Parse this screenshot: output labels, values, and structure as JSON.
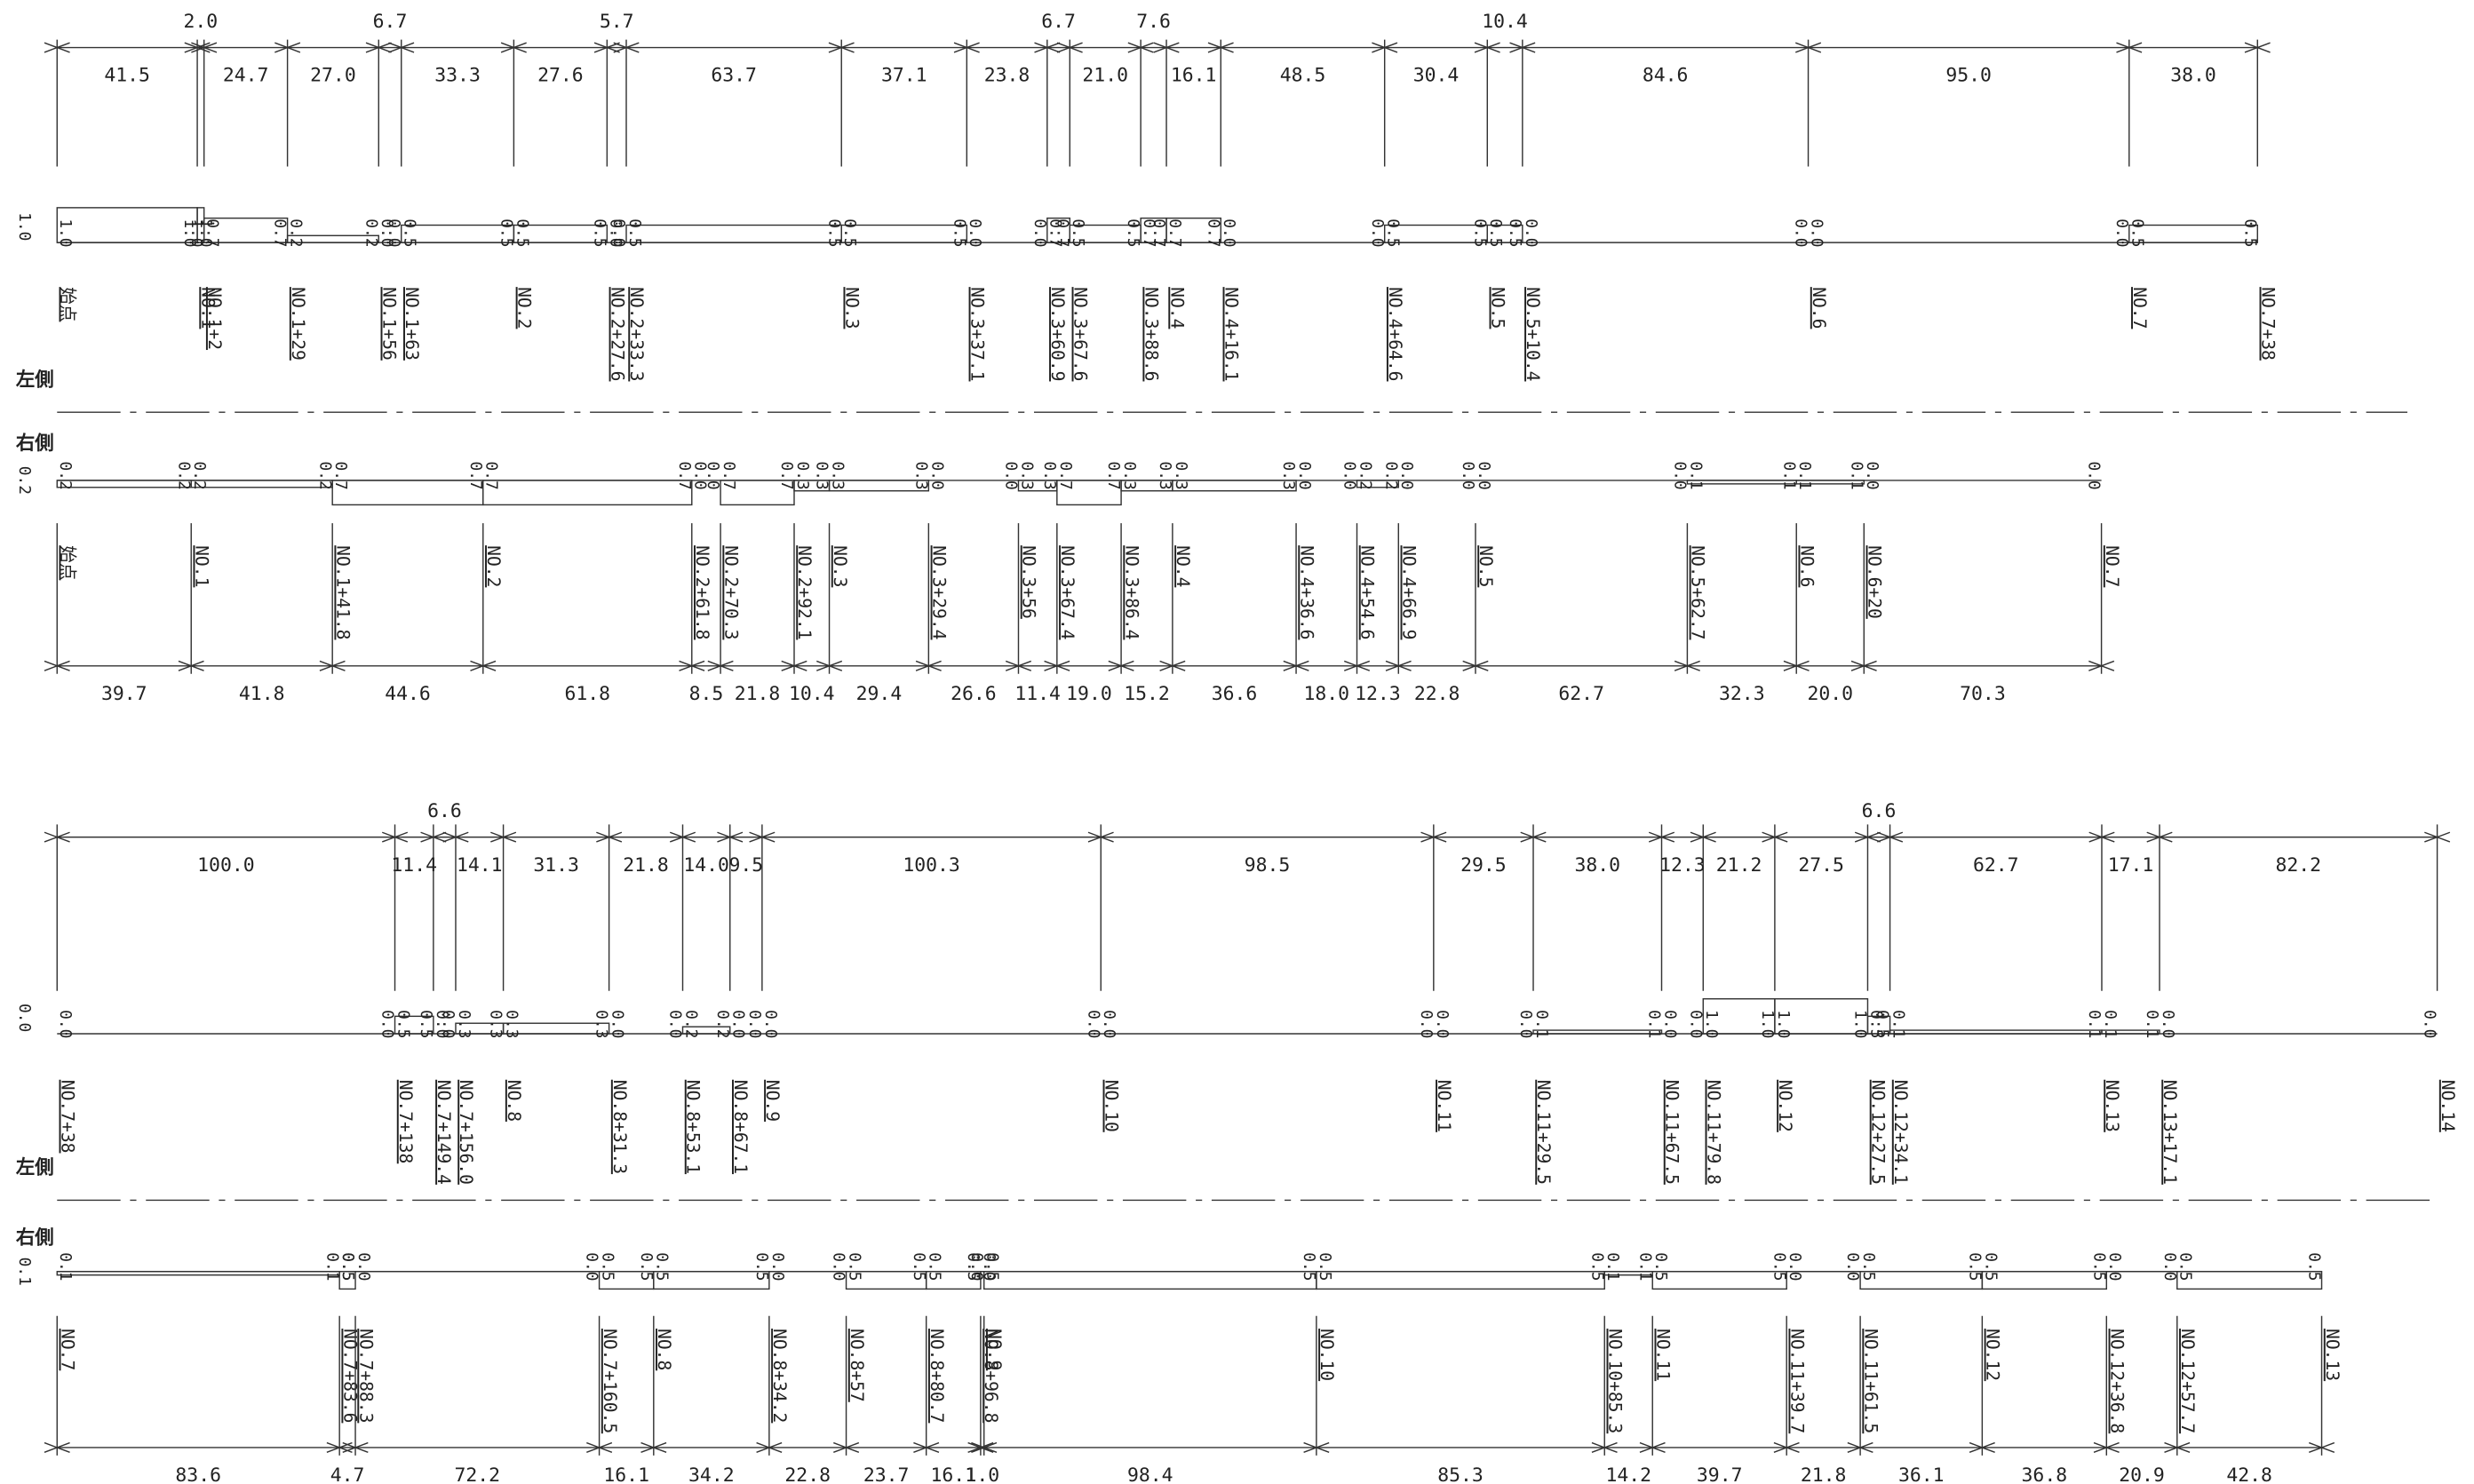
{
  "side_labels": {
    "left": "左側",
    "right": "右側"
  },
  "panels": [
    {
      "start_width": "1.0",
      "dims": [
        "41.5",
        "2.0",
        "24.7",
        "27.0",
        "6.7",
        "33.3",
        "27.6",
        "5.7",
        "63.7",
        "37.1",
        "23.8",
        "6.7",
        "21.0",
        "7.6",
        "16.1",
        "48.5",
        "30.4",
        "10.4",
        "84.6",
        "95.0",
        "38.0"
      ],
      "stations": [
        "始点",
        "NO.1",
        "NO.1+2",
        "NO.1+29",
        "NO.1+56",
        "NO.1+63",
        "NO.2",
        "NO.2+27.6",
        "NO.2+33.3",
        "NO.3",
        "NO.3+37.1",
        "NO.3+60.9",
        "NO.3+67.6",
        "NO.3+88.6",
        "NO.4",
        "NO.4+16.1",
        "NO.4+64.6",
        "NO.5",
        "NO.5+10.4",
        "NO.6",
        "NO.7",
        "NO.7+38"
      ],
      "widths": [
        "1.0",
        "1.0",
        "0.7",
        "0.2",
        "0.0",
        "0.5",
        "0.5",
        "0.0",
        "0.5",
        "0.5",
        "0.0",
        "0.7",
        "0.5",
        "0.7",
        "0.7",
        "0.0",
        "0.5",
        "0.5",
        "0.0",
        "0.0",
        "0.5"
      ]
    },
    {
      "start_width": "0.2",
      "dims": [
        "39.7",
        "41.8",
        "44.6",
        "61.8",
        "8.5",
        "21.8",
        "10.4",
        "29.4",
        "26.6",
        "11.4",
        "19.0",
        "15.2",
        "36.6",
        "18.0",
        "12.3",
        "22.8",
        "62.7",
        "32.3",
        "20.0",
        "70.3"
      ],
      "stations": [
        "始点",
        "NO.1",
        "NO.1+41.8",
        "NO.2",
        "NO.2+61.8",
        "NO.2+70.3",
        "NO.2+92.1",
        "NO.3",
        "NO.3+29.4",
        "NO.3+56",
        "NO.3+67.4",
        "NO.3+86.4",
        "NO.4",
        "NO.4+36.6",
        "NO.4+54.6",
        "NO.4+66.9",
        "NO.5",
        "NO.5+62.7",
        "NO.6",
        "NO.6+20",
        "NO.7"
      ],
      "widths": [
        "0.2",
        "0.2",
        "0.7",
        "0.7",
        "0.0",
        "0.7",
        "0.3",
        "0.3",
        "0.0",
        "0.3",
        "0.7",
        "0.3",
        "0.3",
        "0.0",
        "0.2",
        "0.0",
        "0.0",
        "0.1",
        "0.1",
        "0.0"
      ]
    },
    {
      "start_width": "0.0",
      "dims": [
        "100.0",
        "11.4",
        "6.6",
        "14.1",
        "31.3",
        "21.8",
        "14.0",
        "9.5",
        "100.3",
        "98.5",
        "29.5",
        "38.0",
        "12.3",
        "21.2",
        "27.5",
        "6.6",
        "62.7",
        "17.1",
        "82.2"
      ],
      "stations": [
        "NO.7+38",
        "NO.7+138",
        "NO.7+149.4",
        "NO.7+156.0",
        "NO.8",
        "NO.8+31.3",
        "NO.8+53.1",
        "NO.8+67.1",
        "NO.9",
        "NO.10",
        "NO.11",
        "NO.11+29.5",
        "NO.11+67.5",
        "NO.11+79.8",
        "NO.12",
        "NO.12+27.5",
        "NO.12+34.1",
        "NO.13",
        "NO.13+17.1",
        "NO.14"
      ],
      "widths": [
        "0.0",
        "0.5",
        "0.0",
        "0.3",
        "0.3",
        "0.0",
        "0.2",
        "0.0",
        "0.0",
        "0.0",
        "0.0",
        "0.1",
        "0.0",
        "1.0",
        "1.0",
        "0.5",
        "0.1",
        "0.1",
        "0.0"
      ]
    },
    {
      "start_width": "0.1",
      "dims": [
        "83.6",
        "4.7",
        "72.2",
        "16.1",
        "34.2",
        "22.8",
        "23.7",
        "16.1",
        "1.0",
        "98.4",
        "85.3",
        "14.2",
        "39.7",
        "21.8",
        "36.1",
        "36.8",
        "20.9",
        "42.8"
      ],
      "stations": [
        "NO.7",
        "NO.7+83.6",
        "NO.7+88.3",
        "NO.7+160.5",
        "NO.8",
        "NO.8+34.2",
        "NO.8+57",
        "NO.8+80.7",
        "NO.8+96.8",
        "NO.9",
        "NO.10",
        "NO.10+85.3",
        "NO.11",
        "NO.11+39.7",
        "NO.11+61.5",
        "NO.12",
        "NO.12+36.8",
        "NO.12+57.7",
        "NO.13"
      ],
      "widths": [
        "0.1",
        "0.5",
        "0.0",
        "0.5",
        "0.5",
        "0.0",
        "0.5",
        "0.5",
        "0.0",
        "0.5",
        "0.5",
        "0.1",
        "0.5",
        "0.0",
        "0.5",
        "0.5",
        "0.0",
        "0.5"
      ]
    }
  ]
}
